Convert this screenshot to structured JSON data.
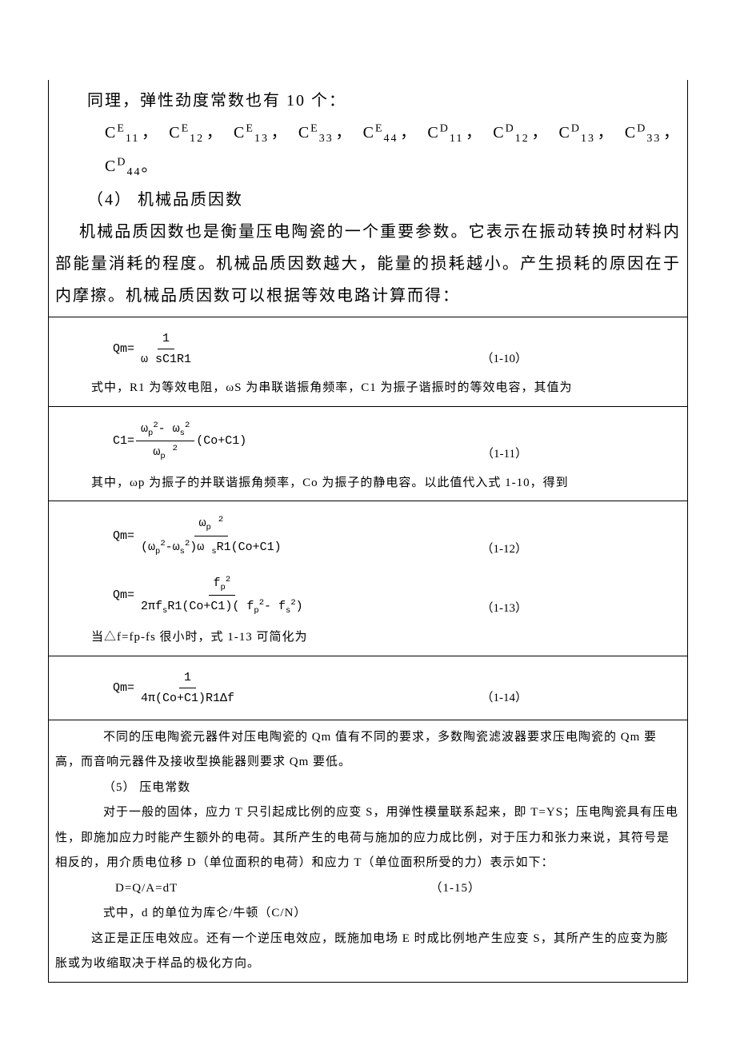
{
  "line1": "同理，弹性劲度常数也有 10 个：",
  "constants_line": "CE11， CE12， CE13， CE33， CE44， CD11， CD12， CD13， CD33， CD44。",
  "section4_title": "（4）    机械品质因数",
  "para4_1": "机械品质因数也是衡量压电陶瓷的一个重要参数。它表示在振动转换时材料内部能量消耗的程度。机械品质因数越大，能量的损耗越小。产生损耗的原因在于内摩擦。机械品质因数可以根据等效电路计算而得：",
  "eq10": {
    "lhs": "Qm=",
    "num": "1",
    "den": "ω sC1R1",
    "tag": "（1-10）"
  },
  "para_eq10_after": "式中，R1 为等效电阻，ωS 为串联谐振角频率，C1 为振子谐振时的等效电容，其值为",
  "eq11": {
    "lhs": "C1=",
    "num": "ωp2- ωs2",
    "den": "ωp 2",
    "tail": "(Co+C1)",
    "tag": "（1-11）"
  },
  "para_eq11_after": "其中，ωp 为振子的并联谐振角频率，Co 为振子的静电容。以此值代入式 1-10，得到",
  "eq12": {
    "lhs": "Qm=",
    "num": "ωp 2",
    "den": "(ωp2-ωs2)ω sR1(Co+C1)",
    "tag": "（1-12）"
  },
  "eq13": {
    "lhs": "Qm=",
    "num": "fp2",
    "den": "2πfsR1(Co+C1)( fp2- fs2)",
    "tag": "（1-13）"
  },
  "para_eq13_after": "当△f=fp-fs 很小时，式 1-13 可简化为",
  "eq14": {
    "lhs": "Qm=",
    "num": "1",
    "den": "4π(Co+C1)R1Δf",
    "tag": "（1-14）"
  },
  "para_qm": "不同的压电陶瓷元器件对压电陶瓷的 Qm 值有不同的要求，多数陶瓷滤波器要求压电陶瓷的 Qm 要高，而音响元器件及接收型换能器则要求 Qm 要低。",
  "section5_title": "（5）        压电常数",
  "para5_1": "对于一般的固体，应力 T 只引起成比例的应变 S，用弹性模量联系起来，即 T=YS；压电陶瓷具有压电性，即施加应力时能产生额外的电荷。其所产生的电荷与施加的应力成比例，对于压力和张力来说，其符号是相反的，用介质电位移 D（单位面积的电荷）和应力 T（单位面积所受的力）表示如下：",
  "eq15_line": "D=Q/A=dT",
  "eq15_tag": "（1-15）",
  "para5_2": "式中，d 的单位为库仑/牛顿（C/N）",
  "para5_3": "这正是正压电效应。还有一个逆压电效应，既施加电场 E 时成比例地产生应变 S，其所产生的应变为膨胀或为收缩取决于样品的极化方向。"
}
